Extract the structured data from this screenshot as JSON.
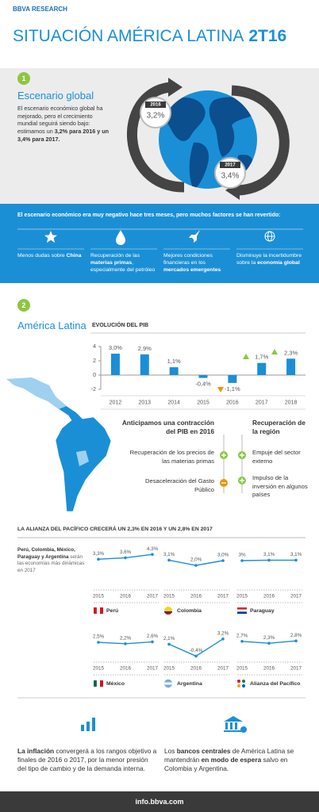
{
  "header": {
    "brand": "BBVA RESEARCH",
    "title": "SITUACIÓN AMÉRICA LATINA",
    "edition": "2T16"
  },
  "section1": {
    "number": "1",
    "title": "Escenario global",
    "text": [
      "El escenario económico global ha mejorado, pero el crecimiento mundial seguirá siendo bajo: estimamos un ",
      "3,2% para 2016 y un 3,4% para 2017."
    ],
    "badges": [
      {
        "year": "2016",
        "value": "3,2%"
      },
      {
        "year": "2017",
        "value": "3,4%"
      }
    ]
  },
  "factors": {
    "title": "El escenario económico era muy negativo hace tres meses, pero muchos factores se han revertido:",
    "items": [
      [
        "Menos dudas sobre ",
        "China"
      ],
      [
        "Recuperación de las ",
        "materias primas",
        ", especialmente del petróleo"
      ],
      [
        "Mejores condiciones financieras en los ",
        "mercados emergentes"
      ],
      [
        "Disminuye la incertidumbre sobre la ",
        "economía global"
      ]
    ]
  },
  "section2": {
    "number": "2",
    "title": "América Latina",
    "contraction": {
      "title": "Anticipamos una contracción del PIB en 2016",
      "items": [
        "Recuperación de los precios de las materias primas",
        "Desaceleración del Gasto Público"
      ]
    },
    "recovery": {
      "title": "Recuperación de la región",
      "items": [
        "Empuje del sector externo",
        "Impulso de la inversión en algunos países"
      ]
    }
  },
  "alliance": {
    "title": "LA ALIANZA DEL PACÍFICO CRECERÁ UN 2,3% EN 2016 Y UN 2,8% EN 2017",
    "note": [
      "Perú, Colombia, México, Paraguay y Argentina",
      " serán las economías más dinámicas en 2017"
    ]
  },
  "closing": [
    [
      "La inflación",
      " convergerá a los rangos objetivo a finales de 2016 o 2017, por la menor presión del tipo de cambio y de la demanda interna."
    ],
    [
      "Los ",
      "bancos centrales",
      " de América Latina se mantendrán ",
      "en modo de espera",
      " salvo en Colombia y Argentina."
    ]
  ],
  "footer": "info.bbva.com",
  "chart_data": [
    {
      "type": "bar",
      "title": "EVOLUCIÓN DEL PIB",
      "categories": [
        "2012",
        "2013",
        "2014",
        "2015",
        "2016",
        "2017",
        "2018"
      ],
      "values": [
        3.0,
        2.9,
        1.1,
        -0.4,
        -1.1,
        1.7,
        2.3
      ],
      "value_labels": [
        "3,0%",
        "2,9%",
        "1,1%",
        "-0,4%",
        "-1,1%",
        "1,7%",
        "2,3%"
      ],
      "color": "#1a8fd6",
      "ylim": [
        -2,
        4
      ],
      "yticks": [
        -2,
        0,
        2,
        4
      ]
    },
    {
      "type": "line",
      "title": "Perú",
      "categories": [
        "2015",
        "2016",
        "2017"
      ],
      "values": [
        3.3,
        3.6,
        4.3
      ],
      "value_labels": [
        "3,3%",
        "3,6%",
        "4,3%"
      ],
      "color": "#1a8fd6"
    },
    {
      "type": "line",
      "title": "Colombia",
      "categories": [
        "2015",
        "2016",
        "2017"
      ],
      "values": [
        3.1,
        2.0,
        3.0
      ],
      "value_labels": [
        "3,1%",
        "2,0%",
        "3,0%"
      ],
      "color": "#1a8fd6"
    },
    {
      "type": "line",
      "title": "Paraguay",
      "categories": [
        "2015",
        "2016",
        "2017"
      ],
      "values": [
        3,
        3.1,
        3.1
      ],
      "value_labels": [
        "3%",
        "3,1%",
        "3,1%"
      ],
      "color": "#1a8fd6"
    },
    {
      "type": "line",
      "title": "México",
      "categories": [
        "2015",
        "2016",
        "2017"
      ],
      "values": [
        2.5,
        2.2,
        2.6
      ],
      "value_labels": [
        "2,5%",
        "2,2%",
        "2,6%"
      ],
      "color": "#1a8fd6"
    },
    {
      "type": "line",
      "title": "Argentina",
      "categories": [
        "2015",
        "2016",
        "2017"
      ],
      "values": [
        2.1,
        -0.4,
        3.2
      ],
      "value_labels": [
        "2,1%",
        "-0,4%",
        "3,2%"
      ],
      "color": "#1a8fd6"
    },
    {
      "type": "line",
      "title": "Alianza del Pacífico",
      "categories": [
        "2015",
        "2016",
        "2017"
      ],
      "values": [
        2.7,
        2.3,
        2.8
      ],
      "value_labels": [
        "2,7%",
        "2,3%",
        "2,8%"
      ],
      "color": "#1a8fd6"
    }
  ]
}
